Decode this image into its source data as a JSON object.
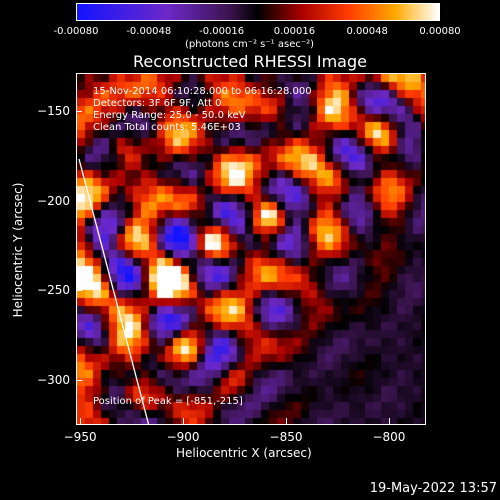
{
  "colorbar": {
    "tick_labels": [
      "-0.00080",
      "-0.00048",
      "-0.00016",
      "0.00016",
      "0.00048",
      "0.00080"
    ],
    "units": "(photons cm⁻² s⁻¹ asec⁻²)",
    "range": [
      -0.0008,
      0.0008
    ],
    "colormap": "rainbow-to-fire"
  },
  "title": "Reconstructed RHESSI Image",
  "info": {
    "time_range": "15-Nov-2014 06:10:28.000 to 06:16:28.000",
    "detectors": "Detectors: 3F 6F 9F, Att 0",
    "energy_range": "Energy Range: 25.0 - 50.0 keV",
    "method": "Clean     Total counts: 5.46E+03",
    "peak_position": "Position of Peak = [-851,-215]"
  },
  "axes": {
    "xlabel": "Heliocentric X (arcsec)",
    "ylabel": "Heliocentric Y (arcsec)",
    "xticks": [
      "-950",
      "-900",
      "-850",
      "-800"
    ],
    "yticks": [
      "-150",
      "-200",
      "-250",
      "-300"
    ],
    "xlim": [
      -952,
      -782
    ],
    "ylim": [
      -325,
      -129
    ]
  },
  "footer": {
    "date": "19-May-2022 13:57"
  }
}
